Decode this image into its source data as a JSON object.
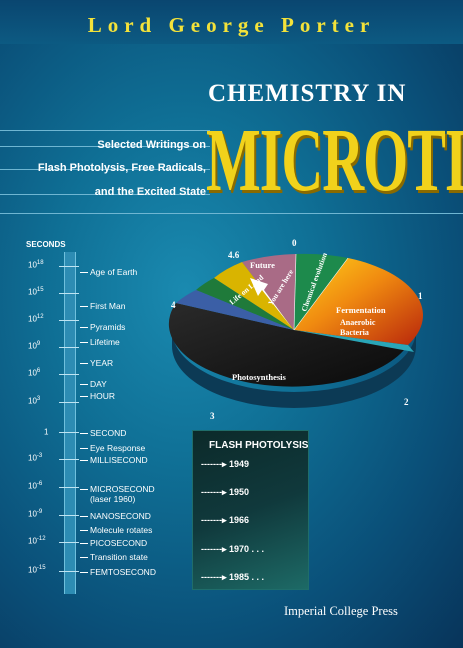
{
  "author": "Lord George Porter",
  "title_line1": "CHEMISTRY IN",
  "title_line2": "MICROTIME",
  "subtitle_lines": [
    "Selected Writings on",
    "Flash Photolysis, Free Radicals,",
    "and the Excited State"
  ],
  "timeline": {
    "unit_label": "SECONDS",
    "exponents": [
      {
        "base": "10",
        "exp": "18"
      },
      {
        "base": "10",
        "exp": "15"
      },
      {
        "base": "10",
        "exp": "12"
      },
      {
        "base": "10",
        "exp": "9"
      },
      {
        "base": "10",
        "exp": "6"
      },
      {
        "base": "10",
        "exp": "3"
      },
      {
        "base": "1",
        "exp": ""
      },
      {
        "base": "10",
        "exp": "-3"
      },
      {
        "base": "10",
        "exp": "-6"
      },
      {
        "base": "10",
        "exp": "-9"
      },
      {
        "base": "10",
        "exp": "-12"
      },
      {
        "base": "10",
        "exp": "-15"
      }
    ],
    "events": [
      "Age of Earth",
      "First Man",
      "Pyramids",
      "Lifetime",
      "YEAR",
      "DAY",
      "HOUR",
      "SECOND",
      "Eye Response",
      "MILLISECOND",
      "MICROSECOND",
      "(laser 1960)",
      "NANOSECOND",
      "Molecule rotates",
      "PICOSECOND",
      "Transition state",
      "FEMTOSECOND"
    ]
  },
  "flash_photolysis": {
    "title": "FLASH PHOTOLYSIS",
    "arrow": "-------▸",
    "years": [
      "1949",
      "1950",
      "1966",
      "1970 . . .",
      "1985 . . ."
    ]
  },
  "pie": {
    "numbers": [
      "0",
      "1",
      "2",
      "3",
      "4",
      "4.6"
    ],
    "labels": [
      "Future",
      "You are here",
      "Life on Land",
      "Chemical evolution",
      "Fermentation",
      "Anaerobic Bacteria",
      "Photosynthesis"
    ]
  },
  "publisher": "Imperial College Press",
  "colors": {
    "author": "#f3e23a",
    "title_accent": "#f1d21b",
    "background": "#0f6f95"
  }
}
